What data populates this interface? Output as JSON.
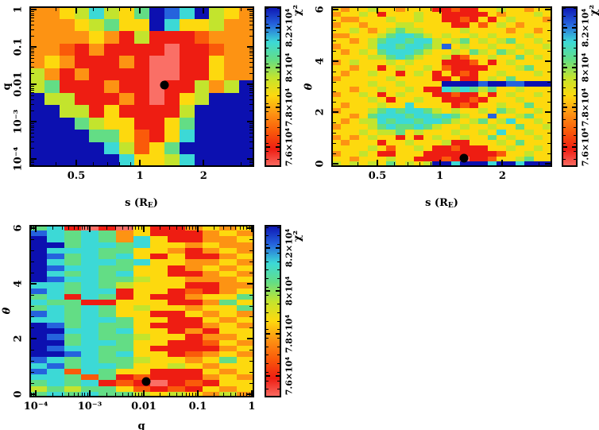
{
  "figure": {
    "background": "#ffffff",
    "marker_color": "#000000",
    "text_color": "#000000"
  },
  "palette": {
    "levels": [
      "#fa6f66",
      "#ee1d12",
      "#fa5a0a",
      "#fd9313",
      "#fdd90e",
      "#c3e42d",
      "#63dd85",
      "#3cd9d6",
      "#2563dd",
      "#0c10b0"
    ],
    "level_values": [
      75000,
      75900,
      76800,
      77700,
      78600,
      79500,
      80400,
      81300,
      82200,
      83100
    ],
    "encoding": "each grid digit d maps to chi-square value level_values[d]"
  },
  "colorbar": {
    "label": "χ²",
    "min": 75000,
    "max": 83100,
    "major_ticks": [
      {
        "value": 76000,
        "label": "7.6×10⁴"
      },
      {
        "value": 78000,
        "label": "7.8×10⁴"
      },
      {
        "value": 80000,
        "label": "8×10⁴"
      },
      {
        "value": 82000,
        "label": "8.2×10⁴"
      }
    ],
    "minor_step": 400
  },
  "chart_data": [
    {
      "id": "panel-q-vs-s",
      "type": "heatmap",
      "x_axis": {
        "title": {
          "text": "s (R",
          "sub": "E",
          "post": ")"
        },
        "scale": "log",
        "min": 0.3,
        "max": 3.47,
        "ticks": [
          {
            "v": 0.5,
            "l": "0.5"
          },
          {
            "v": 1,
            "l": "1"
          },
          {
            "v": 2,
            "l": "2"
          }
        ]
      },
      "y_axis": {
        "title": {
          "text": "q"
        },
        "scale": "log",
        "min": 6.1e-05,
        "max": 1.22,
        "ticks": [
          {
            "v": 1,
            "l": "1"
          },
          {
            "v": 0.1,
            "l": "0.1"
          },
          {
            "v": 0.01,
            "l": "0.01"
          },
          {
            "v": 0.001,
            "l": "10⁻³"
          },
          {
            "v": 0.0001,
            "l": "10⁻⁴"
          }
        ]
      },
      "marker": {
        "x": 1.3,
        "y": 0.0097
      },
      "grid": [
        "334575469879543",
        "333456449744533",
        "333343151112333",
        "332131111011233",
        "343111310011433",
        "531311110011433",
        "561113110115359",
        "955111310145999",
        "995514111159999",
        "999654411469999",
        "999966421479999",
        "999997524699999",
        "999999744579999"
      ]
    },
    {
      "id": "panel-theta-vs-s",
      "type": "heatmap",
      "x_axis": {
        "title": {
          "text": "s (R",
          "sub": "E",
          "post": ")"
        },
        "scale": "log",
        "min": 0.3,
        "max": 3.47,
        "ticks": [
          {
            "v": 0.5,
            "l": "0.5"
          },
          {
            "v": 1,
            "l": "1"
          },
          {
            "v": 2,
            "l": "2"
          }
        ]
      },
      "y_axis": {
        "title": {
          "text": "θ"
        },
        "scale": "linear",
        "min": -0.125,
        "max": 6.125,
        "minor_step": 0.4,
        "ticks": [
          {
            "v": 0,
            "l": "0"
          },
          {
            "v": 2,
            "l": "2"
          },
          {
            "v": 4,
            "l": "4"
          },
          {
            "v": 6,
            "l": "6"
          }
        ]
      },
      "marker": {
        "x": 1.3,
        "y": 0.2
      },
      "grid": [
        "434454434441121144544344",
        "344541444544111114344454",
        "433444544544112141454443",
        "344344455444411424543444",
        "445434565544445444434434",
        "334445677654544545444544",
        "443456776775456454564454",
        "344457767765845445445445",
        "434546777654454654654544",
        "444455676544512445446454",
        "345444545444111241454444",
        "443441454454211114445644",
        "434454414541412144544454",
        "344444544441141145464444",
        "444454454444999989988999",
        "443445445411767656445444",
        "344541454441121141454454",
        "444454144544111214445444",
        "434445447444412144544644",
        "344456767765454454654454",
        "443467776776765448445644",
        "434557677677654564574454",
        "344456766765445445446445",
        "444545564544454454744544",
        "343454414145445446454454",
        "434441445444511444546444",
        "444454244541121114454454",
        "344541144411111111244544",
        "443444544111210112445644",
        "545454645459979997997999"
      ]
    },
    {
      "id": "panel-theta-vs-q",
      "type": "heatmap",
      "x_axis": {
        "title": {
          "text": "q"
        },
        "scale": "log",
        "min": 7.6e-05,
        "max": 1.11,
        "ticks": [
          {
            "v": 0.0001,
            "l": "10⁻⁴"
          },
          {
            "v": 0.001,
            "l": "10⁻³"
          },
          {
            "v": 0.01,
            "l": "0.01"
          },
          {
            "v": 0.1,
            "l": "0.1"
          },
          {
            "v": 1,
            "l": "1"
          }
        ]
      },
      "y_axis": {
        "title": {
          "text": "θ"
        },
        "scale": "linear",
        "min": -0.125,
        "max": 6.125,
        "minor_step": 0.4,
        "ticks": [
          {
            "v": 0,
            "l": "0"
          },
          {
            "v": 2,
            "l": "2"
          },
          {
            "v": 4,
            "l": "4"
          },
          {
            "v": 6,
            "l": "6"
          }
        ]
      },
      "marker": {
        "x": 0.011,
        "y": 0.45
      },
      "grid": [
        "6710104113434",
        "8767634111343",
        "9767637411334",
        "9967767443433",
        "9777664431343",
        "9867674141134",
        "9767767443343",
        "9877664413434",
        "9767674411343",
        "9877665443334",
        "7767654441133",
        "8767714412134",
        "6717614113446",
        "7661144411364",
        "6767645443446",
        "8767644114343",
        "7767764411434",
        "9867664111343",
        "9977674413144",
        "9867665441334",
        "9967764411243",
        "9877664111134",
        "9987674412343",
        "8767665443464",
        "7867764454344",
        "8727644111434",
        "7762612111343",
        "6767121012144",
        "5656642121434",
        "6767665454353"
      ]
    }
  ]
}
